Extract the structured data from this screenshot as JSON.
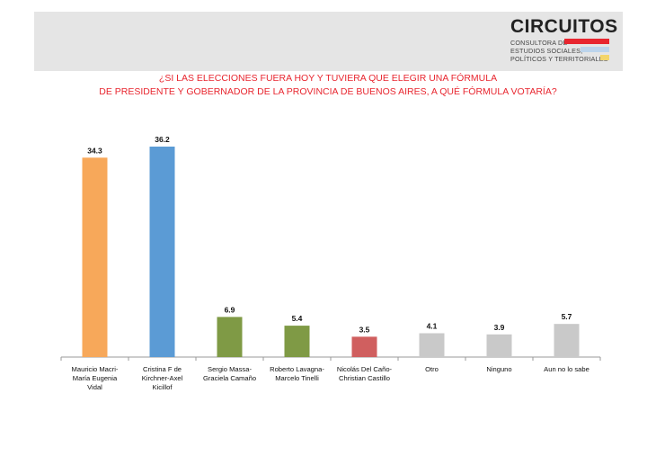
{
  "logo": {
    "name": "CIRCUITOS",
    "lines": [
      "CONSULTORA DE",
      "ESTUDIOS SOCIALES,",
      "POLÍTICOS Y TERRITORIALES"
    ],
    "colors": [
      "#e8262f",
      "#bcd4ec",
      "#f3d56a"
    ]
  },
  "chart_data": {
    "type": "bar",
    "title": "¿SI  LAS ELECCIONES FUERA HOY Y TUVIERA QUE ELEGIR UNA FÓRMULA\nDE PRESIDENTE Y GOBERNADOR DE LA PROVINCIA DE BUENOS AIRES, A QUÉ FÓRMULA VOTARÍA?",
    "categories": [
      "Mauricio Macri-\nMaría Eugenia\nVidal",
      "Cristina F de\nKirchner-Axel\nKicillof",
      "Sergio Massa-\nGraciela Camaño",
      "Roberto Lavagna-\nMarcelo Tinelli",
      "Nicolás Del Caño-\nChristian Castillo",
      "Otro",
      "Ninguno",
      "Aun no lo sabe"
    ],
    "values": [
      34.3,
      36.2,
      6.9,
      5.4,
      3.5,
      4.1,
      3.9,
      5.7
    ],
    "value_labels": [
      "34.3",
      "36.2",
      "6.9",
      "5.4",
      "3.5",
      "4.1",
      "3.9",
      "5.7"
    ],
    "colors": [
      "#f7a85a",
      "#5b9bd5",
      "#7f9a45",
      "#7f9a45",
      "#d05f5f",
      "#c9c9c9",
      "#c9c9c9",
      "#c9c9c9"
    ],
    "ylim": [
      0,
      36.2
    ],
    "grid": false,
    "legend": "none"
  }
}
